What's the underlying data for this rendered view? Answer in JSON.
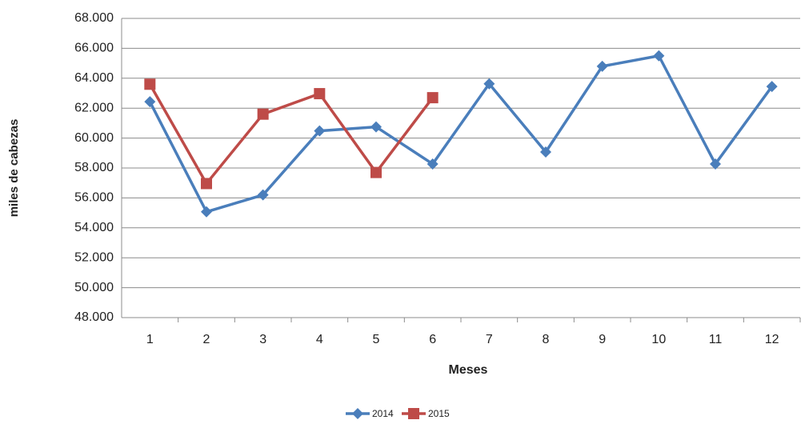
{
  "chart_data": {
    "type": "line",
    "x_label": "Meses",
    "y_label": "miles de cabezas",
    "categories": [
      "1",
      "2",
      "3",
      "4",
      "5",
      "6",
      "7",
      "8",
      "9",
      "10",
      "11",
      "12"
    ],
    "series": [
      {
        "name": "2014",
        "color": "#4a7ebb",
        "marker": "diamond",
        "values": [
          62430,
          55070,
          56200,
          60480,
          60750,
          58270,
          63630,
          59070,
          64800,
          65500,
          58270,
          63450
        ]
      },
      {
        "name": "2015",
        "color": "#be4b48",
        "marker": "square",
        "values": [
          63600,
          56960,
          61600,
          62970,
          57700,
          62700,
          null,
          null,
          null,
          null,
          null,
          null
        ]
      }
    ],
    "ylim": [
      48000,
      68000
    ],
    "yticks": [
      {
        "value": 48000,
        "label": "48.000"
      },
      {
        "value": 50000,
        "label": "50.000"
      },
      {
        "value": 52000,
        "label": "52.000"
      },
      {
        "value": 54000,
        "label": "54.000"
      },
      {
        "value": 56000,
        "label": "56.000"
      },
      {
        "value": 58000,
        "label": "58.000"
      },
      {
        "value": 60000,
        "label": "60.000"
      },
      {
        "value": 62000,
        "label": "62.000"
      },
      {
        "value": 64000,
        "label": "64.000"
      },
      {
        "value": 66000,
        "label": "66.000"
      },
      {
        "value": 68000,
        "label": "68.000"
      }
    ],
    "grid": true,
    "legend": "bottom"
  }
}
